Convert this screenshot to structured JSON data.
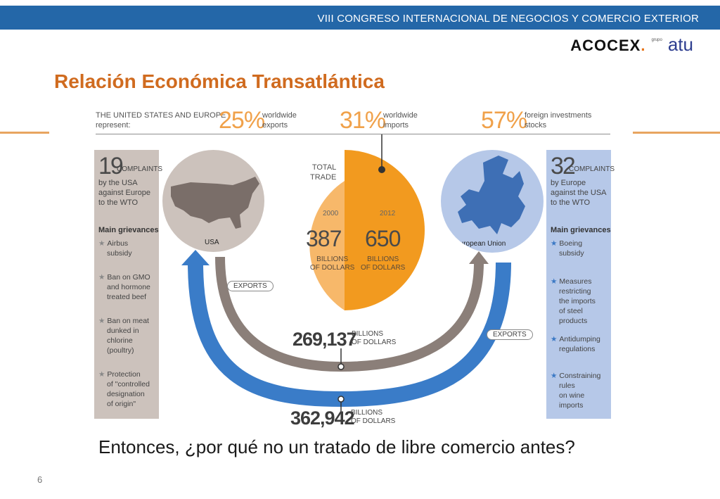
{
  "header": {
    "event": "VIII CONGRESO INTERNACIONAL DE NEGOCIOS Y COMERCIO EXTERIOR",
    "brand_acocex": "ACOCEX",
    "brand_dot": ".",
    "brand_grupo": "grupo",
    "brand_atu": "atu"
  },
  "title": "Relación Económica Transatlántica",
  "infographic": {
    "lead": [
      "THE UNITED STATES AND EUROPE",
      "represent:"
    ],
    "stats": [
      {
        "pct": "25%",
        "label": [
          "worldwide",
          "exports"
        ]
      },
      {
        "pct": "31%",
        "label": [
          "worldwide",
          "imports"
        ]
      },
      {
        "pct": "57%",
        "label": [
          "foreign investments",
          "stocks"
        ]
      }
    ],
    "left_panel": {
      "number": "19",
      "complaints": "COMPLAINTS",
      "desc": [
        "by the USA",
        "against Europe",
        "to the WTO"
      ],
      "grievances_title": "Main grievances",
      "grievances": [
        [
          "Airbus",
          "subsidy"
        ],
        [
          "Ban on GMO",
          "and hormone",
          "treated beef"
        ],
        [
          "Ban on meat",
          "dunked in",
          "chlorine",
          "(poultry)"
        ],
        [
          "Protection",
          "of \"controlled",
          "designation",
          "of origin\""
        ]
      ]
    },
    "right_panel": {
      "number": "32",
      "complaints": "COMPLAINTS",
      "desc": [
        "by Europe",
        "against the USA",
        "to the WTO"
      ],
      "grievances_title": "Main grievances",
      "grievances": [
        [
          "Boeing",
          "subsidy"
        ],
        [
          "Measures",
          "restricting",
          "the imports",
          "of steel products"
        ],
        [
          "Antidumping",
          "regulations"
        ],
        [
          "Constraining",
          "rules",
          "on wine",
          "imports"
        ]
      ]
    },
    "usa_label": "USA",
    "eu_label": "European Union",
    "total_trade": [
      "TOTAL",
      "TRADE"
    ],
    "year_2000": "2000",
    "year_2012": "2012",
    "value_2000": "387",
    "value_2012": "650",
    "value_unit": [
      "BILLIONS",
      "OF DOLLARS"
    ],
    "exports_label": "EXPORTS",
    "flow_usa_to_eu": "269,137",
    "flow_eu_to_usa": "362,942",
    "flow_unit": [
      "BILLIONS",
      "OF DOLLARS"
    ]
  },
  "caption": "Entonces, ¿por qué no un tratado de libre comercio antes?",
  "page_number": "6",
  "colors": {
    "header_bar": "#2467a8",
    "title": "#d06b1f",
    "orange_light": "#f7b86a",
    "orange_dark": "#f29a1f",
    "gray_arc": "#8b7f79",
    "blue_arc": "#3a7cc8"
  }
}
